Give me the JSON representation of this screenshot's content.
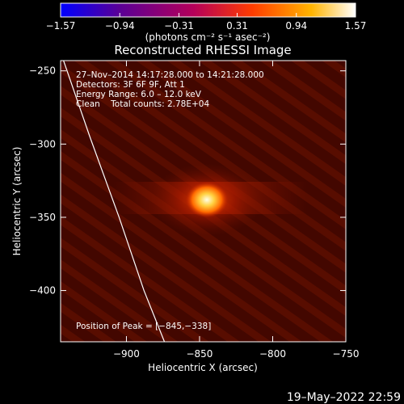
{
  "chart_data": {
    "type": "heatmap",
    "title": "Reconstructed RHESSI Image",
    "xlabel": "Heliocentric X (arcsec)",
    "ylabel": "Heliocentric Y (arcsec)",
    "xlim": [
      -945,
      -750
    ],
    "ylim": [
      -435,
      -243
    ],
    "x_ticks": [
      -900,
      -850,
      -800,
      -750
    ],
    "x_tick_labels": [
      "−900",
      "−850",
      "−800",
      "−750"
    ],
    "y_ticks": [
      -250,
      -300,
      -350,
      -400
    ],
    "y_tick_labels": [
      "−250",
      "−300",
      "−350",
      "−400"
    ],
    "colorbar": {
      "range": [
        -1.57,
        1.57
      ],
      "ticks": [
        -1.57,
        -0.94,
        -0.31,
        0.31,
        0.94,
        1.57
      ],
      "tick_labels": [
        "−1.57",
        "−0.94",
        "−0.31",
        "0.31",
        "0.94",
        "1.57"
      ],
      "units_label": "(photons cm⁻² s⁻¹ asec⁻²)",
      "colors": [
        "#0000ff",
        "#5a0096",
        "#b4005a",
        "#ff3c00",
        "#ffb400",
        "#ffffff"
      ]
    },
    "annotations": {
      "time_range": "27–Nov–2014 14:17:28.000 to 14:21:28.000",
      "detectors": "Detectors: 3F 6F 9F, Att 1",
      "energy_range": "Energy Range: 6.0 – 12.0 keV",
      "clean_counts": "Clean    Total counts: 2.78E+04",
      "peak_position": "Position of Peak = [−845,−338]"
    },
    "peak": {
      "x": -845,
      "y": -338
    },
    "limb_curve": [
      [
        -943,
        -243
      ],
      [
        -925,
        -295
      ],
      [
        -905,
        -350
      ],
      [
        -888,
        -400
      ],
      [
        -874,
        -435
      ]
    ],
    "footer_date": "19–May–2022 22:59"
  }
}
